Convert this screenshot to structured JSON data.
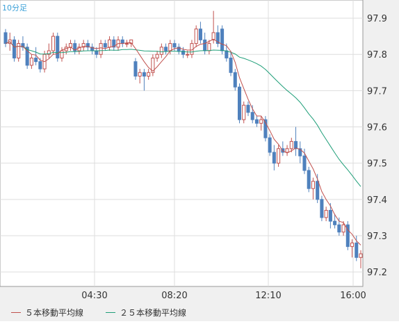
{
  "chart_data": {
    "type": "candlestick",
    "title": "10分足",
    "y_range": [
      97.16,
      97.95
    ],
    "y_ticks": [
      "97.9",
      "97.8",
      "97.7",
      "97.6",
      "97.5",
      "97.4",
      "97.3",
      "97.2"
    ],
    "x_ticks": [
      "04:30",
      "08:20",
      "12:10",
      "16:00"
    ],
    "legend": [
      "５本移動平均線",
      "２５本移動平均線"
    ],
    "colors": {
      "up": "#c0504d",
      "down": "#4f81bd",
      "ma5": "#c0504d",
      "ma25": "#1e9e78",
      "title": "#3aa0d8"
    },
    "candles": [
      [
        97.86,
        97.87,
        97.82,
        97.83
      ],
      [
        97.83,
        97.86,
        97.81,
        97.84
      ],
      [
        97.84,
        97.85,
        97.78,
        97.79
      ],
      [
        97.79,
        97.84,
        97.78,
        97.83
      ],
      [
        97.83,
        97.85,
        97.81,
        97.82
      ],
      [
        97.82,
        97.83,
        97.76,
        97.77
      ],
      [
        97.77,
        97.8,
        97.76,
        97.79
      ],
      [
        97.79,
        97.82,
        97.77,
        97.78
      ],
      [
        97.78,
        97.79,
        97.75,
        97.76
      ],
      [
        97.76,
        97.81,
        97.75,
        97.8
      ],
      [
        97.8,
        97.83,
        97.79,
        97.81
      ],
      [
        97.81,
        97.86,
        97.8,
        97.85
      ],
      [
        97.85,
        97.86,
        97.78,
        97.79
      ],
      [
        97.79,
        97.82,
        97.78,
        97.81
      ],
      [
        97.81,
        97.83,
        97.8,
        97.82
      ],
      [
        97.82,
        97.84,
        97.81,
        97.83
      ],
      [
        97.83,
        97.84,
        97.8,
        97.81
      ],
      [
        97.81,
        97.83,
        97.8,
        97.82
      ],
      [
        97.82,
        97.84,
        97.81,
        97.83
      ],
      [
        97.83,
        97.84,
        97.81,
        97.82
      ],
      [
        97.82,
        97.83,
        97.8,
        97.81
      ],
      [
        97.81,
        97.82,
        97.79,
        97.8
      ],
      [
        97.8,
        97.84,
        97.79,
        97.83
      ],
      [
        97.83,
        97.84,
        97.81,
        97.82
      ],
      [
        97.82,
        97.85,
        97.81,
        97.84
      ],
      [
        97.84,
        97.85,
        97.81,
        97.82
      ],
      [
        97.82,
        97.85,
        97.81,
        97.84
      ],
      [
        97.84,
        97.85,
        97.82,
        97.83
      ],
      [
        97.83,
        97.84,
        97.82,
        97.83
      ],
      [
        97.83,
        97.84,
        97.82,
        97.84
      ],
      [
        97.78,
        97.79,
        97.73,
        97.74
      ],
      [
        97.74,
        97.76,
        97.72,
        97.75
      ],
      [
        97.75,
        97.76,
        97.7,
        97.74
      ],
      [
        97.74,
        97.76,
        97.73,
        97.75
      ],
      [
        97.75,
        97.8,
        97.74,
        97.79
      ],
      [
        97.79,
        97.81,
        97.78,
        97.8
      ],
      [
        97.8,
        97.83,
        97.79,
        97.82
      ],
      [
        97.82,
        97.83,
        97.8,
        97.81
      ],
      [
        97.81,
        97.84,
        97.8,
        97.83
      ],
      [
        97.83,
        97.84,
        97.81,
        97.82
      ],
      [
        97.82,
        97.83,
        97.8,
        97.81
      ],
      [
        97.81,
        97.82,
        97.79,
        97.8
      ],
      [
        97.8,
        97.81,
        97.79,
        97.8
      ],
      [
        97.8,
        97.84,
        97.79,
        97.83
      ],
      [
        97.83,
        97.88,
        97.82,
        97.87
      ],
      [
        97.87,
        97.89,
        97.83,
        97.84
      ],
      [
        97.84,
        97.86,
        97.8,
        97.81
      ],
      [
        97.81,
        97.84,
        97.8,
        97.83
      ],
      [
        97.84,
        97.92,
        97.83,
        97.86
      ],
      [
        97.86,
        97.88,
        97.82,
        97.83
      ],
      [
        97.87,
        97.88,
        97.8,
        97.81
      ],
      [
        97.81,
        97.83,
        97.78,
        97.79
      ],
      [
        97.79,
        97.81,
        97.74,
        97.75
      ],
      [
        97.75,
        97.76,
        97.7,
        97.71
      ],
      [
        97.71,
        97.72,
        97.61,
        97.62
      ],
      [
        97.62,
        97.67,
        97.61,
        97.66
      ],
      [
        97.66,
        97.67,
        97.63,
        97.64
      ],
      [
        97.64,
        97.66,
        97.61,
        97.62
      ],
      [
        97.62,
        97.63,
        97.6,
        97.61
      ],
      [
        97.61,
        97.63,
        97.59,
        97.62
      ],
      [
        97.62,
        97.63,
        97.56,
        97.57
      ],
      [
        97.57,
        97.58,
        97.52,
        97.53
      ],
      [
        97.53,
        97.55,
        97.48,
        97.5
      ],
      [
        97.5,
        97.55,
        97.49,
        97.54
      ],
      [
        97.54,
        97.56,
        97.52,
        97.53
      ],
      [
        97.53,
        97.55,
        97.52,
        97.54
      ],
      [
        97.54,
        97.57,
        97.53,
        97.56
      ],
      [
        97.56,
        97.6,
        97.52,
        97.54
      ],
      [
        97.54,
        97.56,
        97.5,
        97.52
      ],
      [
        97.52,
        97.54,
        97.47,
        97.48
      ],
      [
        97.48,
        97.49,
        97.42,
        97.43
      ],
      [
        97.43,
        97.46,
        97.4,
        97.45
      ],
      [
        97.45,
        97.47,
        97.39,
        97.4
      ],
      [
        97.4,
        97.41,
        97.34,
        97.35
      ],
      [
        97.35,
        97.38,
        97.34,
        97.37
      ],
      [
        97.37,
        97.39,
        97.32,
        97.34
      ],
      [
        97.34,
        97.36,
        97.32,
        97.33
      ],
      [
        97.33,
        97.35,
        97.3,
        97.31
      ],
      [
        97.31,
        97.34,
        97.3,
        97.33
      ],
      [
        97.33,
        97.34,
        97.26,
        97.27
      ],
      [
        97.27,
        97.29,
        97.24,
        97.28
      ],
      [
        97.28,
        97.3,
        97.23,
        97.24
      ],
      [
        97.24,
        97.26,
        97.21,
        97.25
      ]
    ]
  }
}
